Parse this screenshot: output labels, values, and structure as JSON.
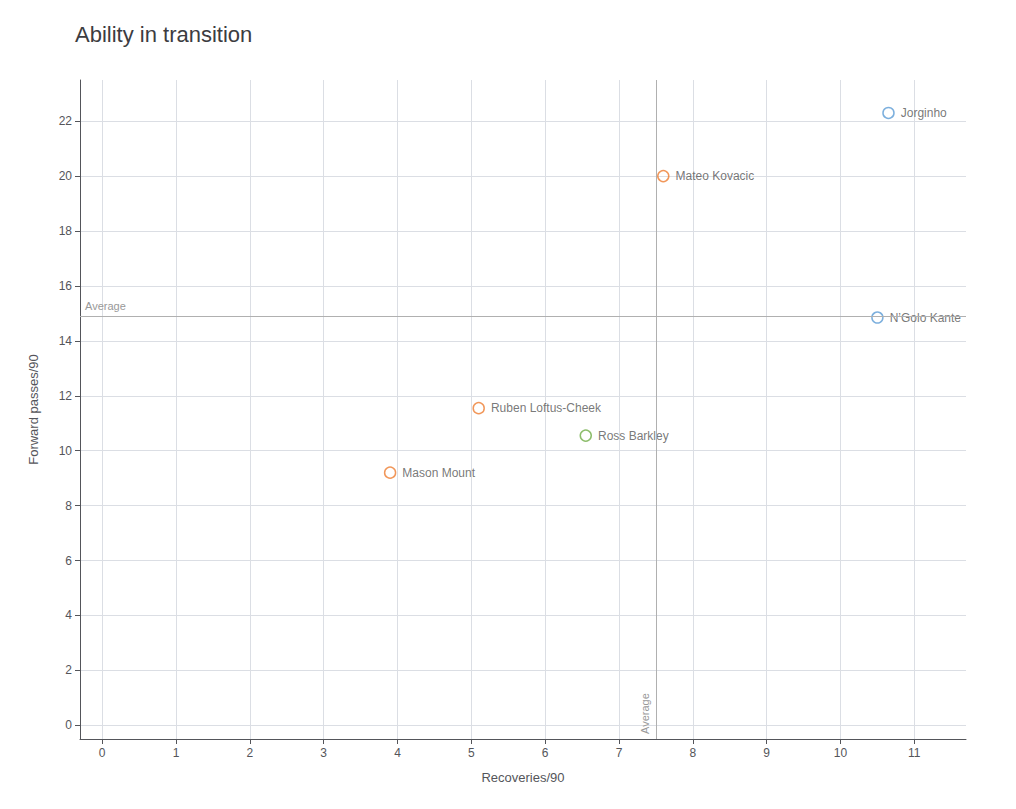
{
  "chart_data": {
    "type": "scatter",
    "title": "Ability in transition",
    "xlabel": "Recoveries/90",
    "ylabel": "Forward passes/90",
    "xlim": [
      -0.3,
      11.7
    ],
    "ylim": [
      -0.5,
      23.5
    ],
    "xticks": [
      0,
      1,
      2,
      3,
      4,
      5,
      6,
      7,
      8,
      9,
      10,
      11
    ],
    "yticks": [
      0,
      2,
      4,
      6,
      8,
      10,
      12,
      14,
      16,
      18,
      20,
      22
    ],
    "grid": true,
    "marker": "circle",
    "points": [
      {
        "name": "Jorginho",
        "x": 10.65,
        "y": 22.3,
        "color": "#5b9bd5"
      },
      {
        "name": "Mateo Kovacic",
        "x": 7.6,
        "y": 20.0,
        "color": "#ed7d31"
      },
      {
        "name": "N’Golo Kante",
        "x": 10.5,
        "y": 14.85,
        "color": "#5b9bd5"
      },
      {
        "name": "Ruben Loftus-Cheek",
        "x": 5.1,
        "y": 11.55,
        "color": "#ed7d31"
      },
      {
        "name": "Ross Barkley",
        "x": 6.55,
        "y": 10.55,
        "color": "#70ad47"
      },
      {
        "name": "Mason Mount",
        "x": 3.9,
        "y": 9.2,
        "color": "#ed7d31"
      }
    ],
    "reference_lines": [
      {
        "axis": "x",
        "value": 7.5,
        "label": "Average",
        "color": "#b0b0b0"
      },
      {
        "axis": "y",
        "value": 14.9,
        "label": "Average",
        "color": "#b0b0b0"
      }
    ]
  }
}
